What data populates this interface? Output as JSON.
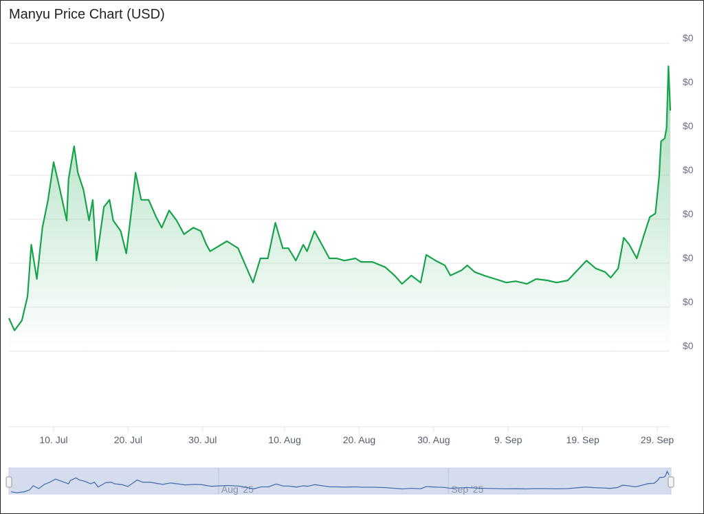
{
  "title": "Manyu Price Chart (USD)",
  "chart_data": {
    "type": "area",
    "title": "Manyu Price Chart (USD)",
    "xlabel": "",
    "ylabel": "",
    "y_tick_labels": [
      "$0",
      "$0",
      "$0",
      "$0",
      "$0",
      "$0",
      "$0",
      "$0"
    ],
    "y_note": "all y tick labels print $0; values below are in gridline steps above the lowest gridline",
    "x_tick_labels": [
      "10. Jul",
      "20. Jul",
      "30. Jul",
      "10. Aug",
      "20. Aug",
      "30. Aug",
      "9. Sep",
      "19. Sep",
      "29. Sep"
    ],
    "x_tick_dates": [
      "2025-07-10",
      "2025-07-20",
      "2025-07-30",
      "2025-08-10",
      "2025-08-20",
      "2025-08-30",
      "2025-09-09",
      "2025-09-19",
      "2025-09-29"
    ],
    "grid": true,
    "line_color": "#16a34a",
    "fill_color": "#16a34a",
    "series": [
      {
        "x": [
          "2025-07-04T00",
          "2025-07-04T18",
          "2025-07-05T18",
          "2025-07-06T12",
          "2025-07-07T00",
          "2025-07-07T18",
          "2025-07-08T12",
          "2025-07-09T06",
          "2025-07-10T00",
          "2025-07-10T18",
          "2025-07-11T18",
          "2025-07-12T00",
          "2025-07-12T18",
          "2025-07-13T06",
          "2025-07-14T00",
          "2025-07-14T18",
          "2025-07-15T06",
          "2025-07-15T18",
          "2025-07-16T18",
          "2025-07-17T12",
          "2025-07-18T00",
          "2025-07-19T00",
          "2025-07-19T18",
          "2025-07-20T12",
          "2025-07-21T00",
          "2025-07-21T18",
          "2025-07-22T18",
          "2025-07-23T18",
          "2025-07-24T12",
          "2025-07-25T12",
          "2025-07-26T12",
          "2025-07-27T12",
          "2025-07-28T18",
          "2025-07-29T18",
          "2025-07-30T12",
          "2025-07-31T00",
          "2025-08-02T06",
          "2025-08-03T18",
          "2025-08-04T18",
          "2025-08-05T18",
          "2025-08-06T18",
          "2025-08-07T18",
          "2025-08-08T18",
          "2025-08-09T18",
          "2025-08-10T12",
          "2025-08-11T12",
          "2025-08-12T12",
          "2025-08-13T00",
          "2025-08-14T00",
          "2025-08-14T18",
          "2025-08-16T00",
          "2025-08-17T00",
          "2025-08-18T00",
          "2025-08-19T12",
          "2025-08-20T06",
          "2025-08-21T18",
          "2025-08-23T12",
          "2025-08-24T18",
          "2025-08-25T18",
          "2025-08-27T00",
          "2025-08-28T06",
          "2025-08-29T00",
          "2025-08-30T06",
          "2025-08-31T12",
          "2025-09-01T06",
          "2025-09-02T18",
          "2025-09-03T12",
          "2025-09-04T12",
          "2025-09-05T18",
          "2025-09-07T06",
          "2025-09-08T18",
          "2025-09-10T00",
          "2025-09-11T12",
          "2025-09-12T18",
          "2025-09-14T06",
          "2025-09-15T12",
          "2025-09-17T00",
          "2025-09-18T12",
          "2025-09-19T12",
          "2025-09-20T18",
          "2025-09-22T00",
          "2025-09-22T18",
          "2025-09-23T18",
          "2025-09-24T12",
          "2025-09-25T06",
          "2025-09-26T06",
          "2025-09-27T06",
          "2025-09-28T00",
          "2025-09-28T18",
          "2025-09-29T06",
          "2025-09-29T12",
          "2025-09-30T00",
          "2025-09-30T06",
          "2025-09-30T12",
          "2025-09-30T18"
        ],
        "y": [
          0.75,
          0.47,
          0.7,
          1.25,
          2.42,
          1.64,
          2.81,
          3.44,
          4.3,
          3.75,
          2.97,
          3.91,
          4.66,
          4.06,
          3.67,
          2.97,
          3.44,
          2.06,
          3.28,
          3.44,
          2.97,
          2.73,
          2.22,
          3.28,
          4.06,
          3.44,
          3.44,
          3.05,
          2.81,
          3.2,
          2.97,
          2.66,
          2.81,
          2.73,
          2.42,
          2.27,
          2.5,
          2.34,
          1.95,
          1.56,
          2.11,
          2.11,
          2.92,
          2.34,
          2.34,
          2.06,
          2.42,
          2.27,
          2.73,
          2.5,
          2.11,
          2.11,
          2.06,
          2.11,
          2.03,
          2.03,
          1.91,
          1.72,
          1.53,
          1.72,
          1.56,
          2.19,
          2.06,
          1.95,
          1.72,
          1.84,
          1.95,
          1.8,
          1.72,
          1.64,
          1.56,
          1.59,
          1.53,
          1.64,
          1.61,
          1.56,
          1.61,
          1.88,
          2.06,
          1.88,
          1.8,
          1.67,
          1.88,
          2.58,
          2.42,
          2.11,
          2.66,
          3.05,
          3.13,
          3.98,
          4.77,
          4.84,
          5.08,
          6.48,
          5.47
        ]
      }
    ],
    "ylim": [
      0,
      7
    ],
    "navigator": {
      "labels": [
        "Aug '25",
        "Sep '25"
      ],
      "label_dates": [
        "2025-08-01",
        "2025-09-01"
      ],
      "line_color": "#4a6fb0",
      "mask_color": "#d4dcee"
    }
  }
}
